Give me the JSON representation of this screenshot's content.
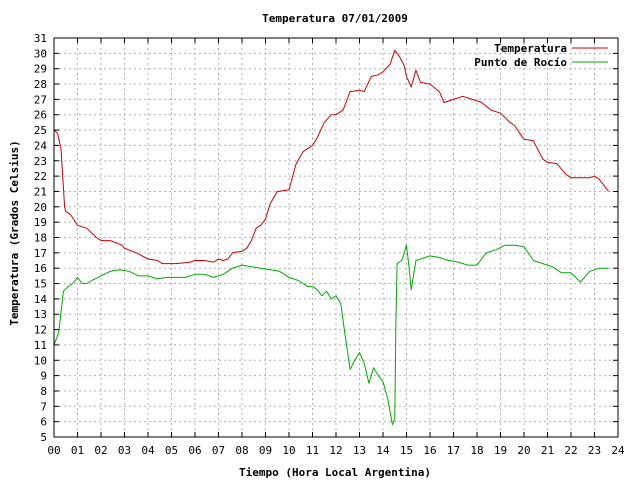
{
  "chart_data": {
    "type": "line",
    "title": "Temperatura 07/01/2009",
    "xlabel": "Tiempo (Hora Local Argentina)",
    "ylabel": "Temperatura (Grados Celsius)",
    "xlim": [
      0,
      24
    ],
    "ylim": [
      5,
      31
    ],
    "x_ticks": [
      "00",
      "01",
      "02",
      "03",
      "04",
      "05",
      "06",
      "07",
      "08",
      "09",
      "10",
      "11",
      "12",
      "13",
      "14",
      "15",
      "16",
      "17",
      "18",
      "19",
      "20",
      "21",
      "22",
      "23",
      "24"
    ],
    "y_ticks": [
      "5",
      "6",
      "7",
      "8",
      "9",
      "10",
      "11",
      "12",
      "13",
      "14",
      "15",
      "16",
      "17",
      "18",
      "19",
      "20",
      "21",
      "22",
      "23",
      "24",
      "25",
      "26",
      "27",
      "28",
      "29",
      "30",
      "31"
    ],
    "grid": true,
    "legend_position": "top-right",
    "colors": {
      "grid": "#b0b0b0",
      "frame": "#000000"
    },
    "series": [
      {
        "name": "Temperatura",
        "color": "#cc0000",
        "x": [
          0,
          0.15,
          0.3,
          0.45,
          0.5,
          0.7,
          1,
          1.2,
          1.4,
          1.8,
          2,
          2.4,
          2.9,
          3,
          3.5,
          4,
          4.4,
          4.6,
          4.8,
          5.2,
          5.8,
          6,
          6.4,
          6.8,
          7,
          7.2,
          7.4,
          7.6,
          8,
          8.2,
          8.4,
          8.6,
          8.8,
          9,
          9.2,
          9.5,
          10,
          10.3,
          10.6,
          11,
          11.2,
          11.5,
          11.8,
          12,
          12.3,
          12.6,
          13,
          13.2,
          13.5,
          13.8,
          14,
          14.3,
          14.5,
          14.7,
          14.9,
          15,
          15.2,
          15.4,
          15.6,
          16,
          16.4,
          16.6,
          17,
          17.4,
          17.8,
          18.2,
          18.6,
          19,
          19.4,
          19.6,
          20,
          20.4,
          20.8,
          21,
          21.4,
          21.8,
          22,
          22.4,
          22.8,
          23,
          23.2,
          23.6
        ],
        "y": [
          25,
          24.8,
          23.8,
          20,
          19.7,
          19.5,
          18.8,
          18.7,
          18.6,
          18,
          17.8,
          17.8,
          17.5,
          17.3,
          17,
          16.6,
          16.5,
          16.3,
          16.3,
          16.3,
          16.4,
          16.5,
          16.5,
          16.4,
          16.6,
          16.5,
          16.6,
          17,
          17.1,
          17.3,
          17.8,
          18.6,
          18.8,
          19.2,
          20.2,
          21,
          21.1,
          22.8,
          23.6,
          24,
          24.5,
          25.5,
          26,
          26,
          26.3,
          27.5,
          27.6,
          27.5,
          28.5,
          28.6,
          28.8,
          29.3,
          30.2,
          29.8,
          29.2,
          28.5,
          27.8,
          28.9,
          28.1,
          28,
          27.5,
          26.8,
          27,
          27.2,
          27,
          26.8,
          26.3,
          26.1,
          25.5,
          25.3,
          24.4,
          24.3,
          23.1,
          22.9,
          22.8,
          22.1,
          21.9,
          21.9,
          21.9,
          22,
          21.8,
          21
        ]
      },
      {
        "name": "Punto de Rocío",
        "color": "#00aa00",
        "x": [
          0,
          0.2,
          0.4,
          0.6,
          0.8,
          1,
          1.2,
          1.4,
          1.6,
          2,
          2.4,
          2.8,
          3.2,
          3.6,
          4,
          4.4,
          4.8,
          5.2,
          5.6,
          6,
          6.4,
          6.8,
          7.2,
          7.6,
          8,
          8.4,
          8.8,
          9.2,
          9.6,
          10,
          10.4,
          10.8,
          11,
          11.2,
          11.4,
          11.6,
          11.8,
          12,
          12.2,
          12.4,
          12.6,
          12.8,
          13,
          13.2,
          13.4,
          13.6,
          13.8,
          14,
          14.2,
          14.4,
          14.5,
          14.55,
          14.6,
          14.8,
          15,
          15.1,
          15.2,
          15.4,
          15.6,
          16,
          16.4,
          16.8,
          17.2,
          17.6,
          18,
          18.4,
          18.8,
          19.2,
          19.6,
          20,
          20.4,
          20.8,
          21.2,
          21.6,
          22,
          22.2,
          22.4,
          22.8,
          23.2,
          23.6
        ],
        "y": [
          11,
          11.8,
          14.5,
          14.8,
          15,
          15.4,
          15,
          15,
          15.2,
          15.5,
          15.8,
          15.9,
          15.8,
          15.5,
          15.5,
          15.3,
          15.4,
          15.4,
          15.4,
          15.6,
          15.6,
          15.4,
          15.6,
          16,
          16.2,
          16.1,
          16,
          15.9,
          15.8,
          15.4,
          15.2,
          14.8,
          14.8,
          14.6,
          14.2,
          14.5,
          14,
          14.2,
          13.7,
          11.5,
          9.4,
          10,
          10.5,
          9.8,
          8.5,
          9.5,
          9,
          8.6,
          7.5,
          5.8,
          6.2,
          12.5,
          16.3,
          16.5,
          17.5,
          16.2,
          14.6,
          16.5,
          16.6,
          16.8,
          16.7,
          16.5,
          16.4,
          16.2,
          16.2,
          17,
          17.2,
          17.5,
          17.5,
          17.4,
          16.5,
          16.3,
          16.1,
          15.7,
          15.7,
          15.4,
          15.1,
          15.8,
          16,
          16
        ]
      }
    ]
  }
}
